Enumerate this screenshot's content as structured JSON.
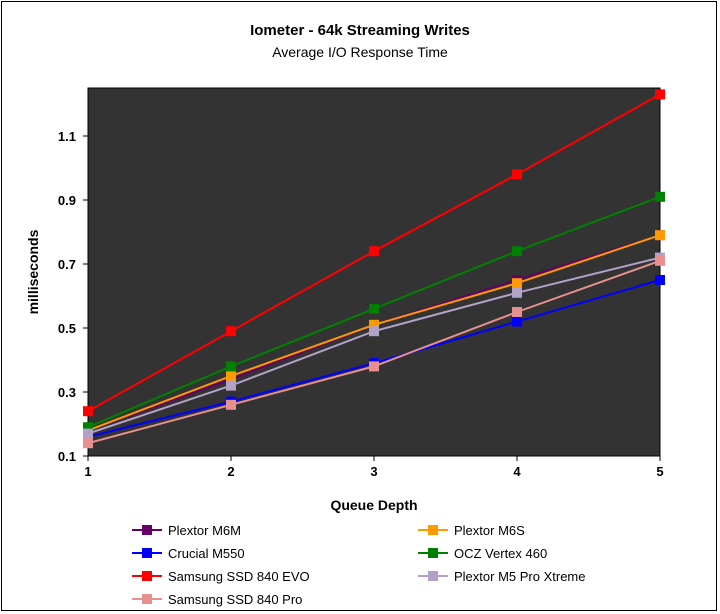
{
  "chart_data": {
    "type": "line",
    "title": "Iometer - 64k Streaming Writes",
    "subtitle": "Average I/O Response Time",
    "xlabel": "Queue Depth",
    "ylabel": "milliseconds",
    "x": [
      1,
      2,
      3,
      4,
      5
    ],
    "xlim": [
      1,
      5
    ],
    "ylim": [
      0.1,
      1.25
    ],
    "yticks": [
      0.1,
      0.3,
      0.5,
      0.7,
      0.9,
      1.1
    ],
    "ytick_labels": [
      "0.1",
      "0.3",
      "0.5",
      "0.7",
      "0.9",
      "1.1"
    ],
    "xtick_labels": [
      "1",
      "2",
      "3",
      "4",
      "5"
    ],
    "plot_background": "#333333",
    "grid": false,
    "legend_position": "bottom",
    "series": [
      {
        "name": "Plextor M6M",
        "color": "#660066",
        "values": [
          0.18,
          0.34,
          0.51,
          0.65,
          0.79
        ]
      },
      {
        "name": "Plextor M6S",
        "color": "#ff9900",
        "values": [
          0.18,
          0.35,
          0.51,
          0.64,
          0.79
        ]
      },
      {
        "name": "Crucial M550",
        "color": "#0000ff",
        "values": [
          0.16,
          0.27,
          0.39,
          0.52,
          0.65
        ]
      },
      {
        "name": "OCZ Vertex 460",
        "color": "#008000",
        "values": [
          0.19,
          0.38,
          0.56,
          0.74,
          0.91
        ]
      },
      {
        "name": "Samsung SSD 840 EVO",
        "color": "#ff0000",
        "values": [
          0.24,
          0.49,
          0.74,
          0.98,
          1.23
        ]
      },
      {
        "name": "Plextor M5 Pro Xtreme",
        "color": "#b3a2c7",
        "values": [
          0.17,
          0.32,
          0.49,
          0.61,
          0.72
        ]
      },
      {
        "name": "Samsung SSD 840 Pro",
        "color": "#e6918f",
        "values": [
          0.14,
          0.26,
          0.38,
          0.55,
          0.71
        ]
      }
    ]
  }
}
